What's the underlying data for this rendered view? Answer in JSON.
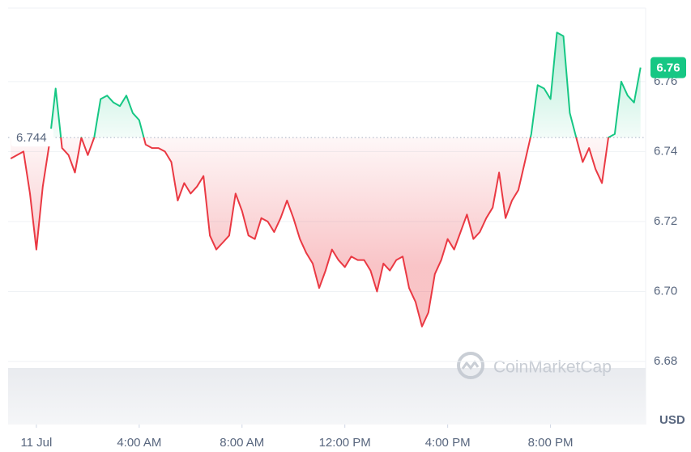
{
  "chart_data": {
    "type": "line",
    "x": [
      -1,
      -0.75,
      -0.5,
      -0.25,
      0,
      0.25,
      0.5,
      0.75,
      1,
      1.25,
      1.5,
      1.75,
      2,
      2.25,
      2.5,
      2.75,
      3,
      3.25,
      3.5,
      3.75,
      4,
      4.25,
      4.5,
      4.75,
      5,
      5.25,
      5.5,
      5.75,
      6,
      6.25,
      6.5,
      6.75,
      7,
      7.25,
      7.5,
      7.75,
      8,
      8.25,
      8.5,
      8.75,
      9,
      9.25,
      9.5,
      9.75,
      10,
      10.25,
      10.5,
      10.75,
      11,
      11.25,
      11.5,
      11.75,
      12,
      12.25,
      12.5,
      12.75,
      13,
      13.25,
      13.5,
      13.75,
      14,
      14.25,
      14.5,
      14.75,
      15,
      15.25,
      15.5,
      15.75,
      16,
      16.25,
      16.5,
      16.75,
      17,
      17.25,
      17.5,
      17.75,
      18,
      18.25,
      18.5,
      18.75,
      19,
      19.25,
      19.5,
      19.75,
      20,
      20.25,
      20.5,
      20.75,
      21,
      21.25,
      21.5,
      21.75,
      22,
      22.25,
      22.5,
      22.75,
      23,
      23.25,
      23.5
    ],
    "series": [
      {
        "values": [
          6.738,
          6.739,
          6.74,
          6.728,
          6.712,
          6.73,
          6.742,
          6.758,
          6.741,
          6.739,
          6.734,
          6.744,
          6.739,
          6.744,
          6.755,
          6.756,
          6.754,
          6.753,
          6.756,
          6.751,
          6.749,
          6.742,
          6.741,
          6.741,
          6.74,
          6.737,
          6.726,
          6.731,
          6.728,
          6.73,
          6.733,
          6.716,
          6.712,
          6.714,
          6.716,
          6.728,
          6.723,
          6.716,
          6.715,
          6.721,
          6.72,
          6.717,
          6.721,
          6.726,
          6.721,
          6.715,
          6.711,
          6.708,
          6.701,
          6.706,
          6.712,
          6.709,
          6.707,
          6.71,
          6.709,
          6.709,
          6.706,
          6.7,
          6.708,
          6.706,
          6.709,
          6.71,
          6.701,
          6.697,
          6.69,
          6.694,
          6.705,
          6.709,
          6.715,
          6.712,
          6.717,
          6.722,
          6.715,
          6.717,
          6.721,
          6.724,
          6.734,
          6.721,
          6.726,
          6.729,
          6.737,
          6.745,
          6.759,
          6.758,
          6.755,
          6.774,
          6.773,
          6.751,
          6.744,
          6.737,
          6.741,
          6.735,
          6.731,
          6.744,
          6.745,
          6.76,
          6.756,
          6.754,
          6.764
        ]
      }
    ],
    "colors": {
      "up": "#16c784",
      "down": "#ea3943"
    },
    "baseline": 6.744,
    "last_label": "6.76",
    "xlim": [
      -1.1,
      23.7
    ],
    "xticks": [
      {
        "value": 0,
        "label": "11 Jul"
      },
      {
        "value": 4,
        "label": "4:00 AM"
      },
      {
        "value": 8,
        "label": "8:00 AM"
      },
      {
        "value": 12,
        "label": "12:00 PM"
      },
      {
        "value": 16,
        "label": "4:00 PM"
      },
      {
        "value": 20,
        "label": "8:00 PM"
      }
    ],
    "ylim": [
      6.662,
      6.781
    ],
    "yticks": [
      6.68,
      {
        "value": 6.7,
        "label": "6.70"
      },
      6.72,
      6.74,
      6.76
    ],
    "grid": true,
    "currency": "USD",
    "watermark": "CoinMarketCap"
  }
}
